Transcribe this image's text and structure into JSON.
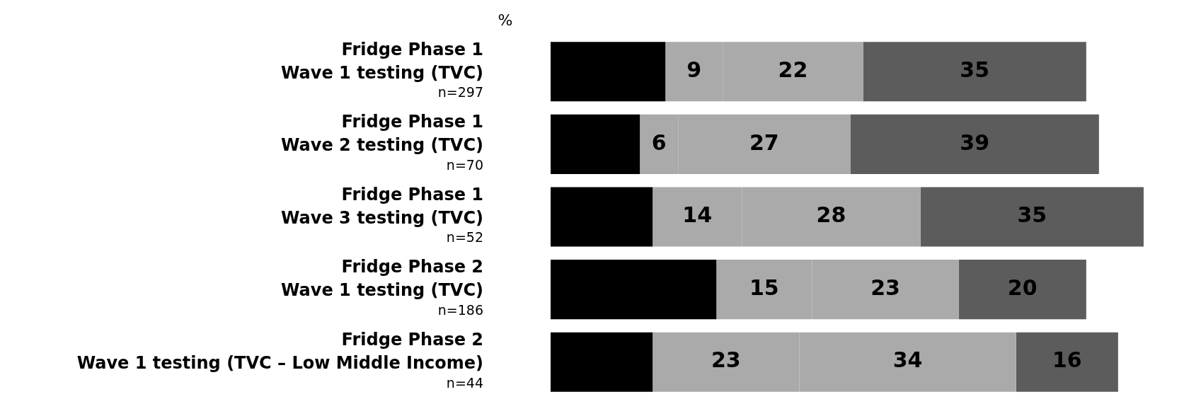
{
  "chart_data": {
    "type": "bar",
    "orientation": "horizontal",
    "stacked": true,
    "grid": false,
    "legend": false,
    "tick_labels": "y",
    "annotations": [
      "%"
    ],
    "categories": [
      "Fridge Phase 1\nWave 1 testing (TVC)\nn=297",
      "Fridge Phase 1\nWave 2 testing (TVC)\nn=70",
      "Fridge Phase 1\nWave 3 testing (TVC)\nn=52",
      "Fridge Phase 2\nWave 1 testing (TVC)\nn=186",
      "Fridge Phase 2\nWave 1 testing (TVC – Low Middle Income)\nn=44"
    ],
    "series": [
      {
        "color": "#000000",
        "values": [
          18,
          14,
          16,
          26,
          16
        ]
      },
      {
        "color": "#aaaaaa",
        "values": [
          9,
          6,
          14,
          15,
          23
        ],
        "value_labels": [
          "9",
          "6",
          "14",
          "15",
          "23"
        ]
      },
      {
        "color": "#aaaaaa",
        "values": [
          22,
          27,
          28,
          23,
          34
        ],
        "value_labels": [
          "22",
          "27",
          "28",
          "23",
          "34"
        ]
      },
      {
        "color": "#5c5c5c",
        "values": [
          35,
          39,
          35,
          20,
          16
        ],
        "value_labels": [
          "35",
          "39",
          "35",
          "20",
          "16"
        ]
      }
    ]
  }
}
